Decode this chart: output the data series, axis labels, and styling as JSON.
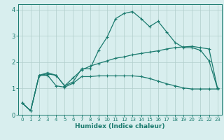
{
  "xlabel": "Humidex (Indice chaleur)",
  "ylabel": "",
  "bg_color": "#d8eeee",
  "line_color": "#1a7a6e",
  "grid_color": "#b0cecb",
  "xlim": [
    -0.5,
    23.5
  ],
  "ylim": [
    0,
    4.2
  ],
  "yticks": [
    0,
    1,
    2,
    3,
    4
  ],
  "xticks": [
    0,
    1,
    2,
    3,
    4,
    5,
    6,
    7,
    8,
    9,
    10,
    11,
    12,
    13,
    14,
    15,
    16,
    17,
    18,
    19,
    20,
    21,
    22,
    23
  ],
  "line1_x": [
    0,
    1,
    2,
    3,
    4,
    5,
    6,
    7,
    8,
    9,
    10,
    11,
    12,
    13,
    14,
    15,
    16,
    17,
    18,
    19,
    20,
    21,
    22,
    23
  ],
  "line1_y": [
    0.45,
    0.15,
    1.5,
    1.6,
    1.5,
    1.1,
    1.25,
    1.75,
    1.75,
    2.45,
    2.95,
    3.65,
    3.85,
    3.92,
    3.65,
    3.35,
    3.55,
    3.15,
    2.75,
    2.55,
    2.55,
    2.45,
    2.05,
    1.0
  ],
  "line2_x": [
    0,
    1,
    2,
    3,
    4,
    5,
    6,
    7,
    8,
    9,
    10,
    11,
    12,
    13,
    14,
    15,
    16,
    17,
    18,
    19,
    20,
    21,
    22,
    23
  ],
  "line2_y": [
    0.45,
    0.15,
    1.5,
    1.55,
    1.5,
    1.1,
    1.4,
    1.7,
    1.85,
    1.95,
    2.05,
    2.15,
    2.2,
    2.28,
    2.33,
    2.38,
    2.43,
    2.5,
    2.55,
    2.58,
    2.6,
    2.55,
    2.5,
    1.0
  ],
  "line3_x": [
    0,
    1,
    2,
    3,
    4,
    5,
    6,
    7,
    8,
    9,
    10,
    11,
    12,
    13,
    14,
    15,
    16,
    17,
    18,
    19,
    20,
    21,
    22,
    23
  ],
  "line3_y": [
    0.45,
    0.15,
    1.5,
    1.5,
    1.1,
    1.05,
    1.2,
    1.45,
    1.45,
    1.48,
    1.48,
    1.48,
    1.48,
    1.48,
    1.45,
    1.38,
    1.28,
    1.18,
    1.1,
    1.02,
    0.98,
    0.98,
    0.98,
    0.98
  ]
}
